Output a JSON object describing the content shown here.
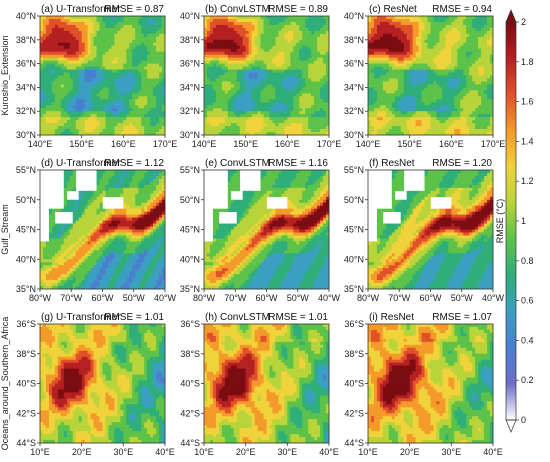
{
  "figure": {
    "rows": [
      {
        "label": "Kuroshio_Extension",
        "region": "kuroshio"
      },
      {
        "label": "Gulf_Stream",
        "region": "gulf"
      },
      {
        "label": "Oceans_around_Southern_Africa",
        "region": "africa"
      }
    ],
    "panels": [
      {
        "title": "(a) U-Transformer",
        "rmse": "RMSE = 0.87",
        "rmse_value": 0.87,
        "model": "U-Transformer",
        "region": "kuroshio"
      },
      {
        "title": "(b) ConvLSTM",
        "rmse": "RMSE = 0.89",
        "rmse_value": 0.89,
        "model": "ConvLSTM",
        "region": "kuroshio"
      },
      {
        "title": "(c) ResNet",
        "rmse": "RMSE = 0.94",
        "rmse_value": 0.94,
        "model": "ResNet",
        "region": "kuroshio"
      },
      {
        "title": "(d) U-Transformer",
        "rmse": "RMSE = 1.12",
        "rmse_value": 1.12,
        "model": "U-Transformer",
        "region": "gulf"
      },
      {
        "title": "(e) ConvLSTM",
        "rmse": "RMSE = 1.16",
        "rmse_value": 1.16,
        "model": "ConvLSTM",
        "region": "gulf"
      },
      {
        "title": "(f) ResNet",
        "rmse": "RMSE = 1.20",
        "rmse_value": 1.2,
        "model": "ResNet",
        "region": "gulf"
      },
      {
        "title": "(g) U-Transformer",
        "rmse": "RMSE = 1.01",
        "rmse_value": 1.01,
        "model": "U-Transformer",
        "region": "africa"
      },
      {
        "title": "(h) ConvLSTM",
        "rmse": "RMSE = 1.01",
        "rmse_value": 1.01,
        "model": "ConvLSTM",
        "region": "africa"
      },
      {
        "title": "(i) ResNet",
        "rmse": "RMSE = 1.07",
        "rmse_value": 1.07,
        "model": "ResNet",
        "region": "africa"
      }
    ],
    "axes": {
      "kuroshio": {
        "x_ticks": [
          "140°E",
          "150°E",
          "160°E",
          "170°E"
        ],
        "y_ticks": [
          "40°N",
          "38°N",
          "36°N",
          "34°N",
          "32°N",
          "30°N"
        ]
      },
      "gulf": {
        "x_ticks": [
          "80°W",
          "70°W",
          "60°W",
          "50°W",
          "40°W"
        ],
        "y_ticks": [
          "55°N",
          "50°N",
          "45°N",
          "40°N",
          "35°N"
        ]
      },
      "africa": {
        "x_ticks": [
          "10°E",
          "20°E",
          "30°E",
          "40°E"
        ],
        "y_ticks": [
          "36°S",
          "38°S",
          "40°S",
          "42°S",
          "44°S"
        ]
      }
    },
    "colorbar": {
      "title": "RMSE (°C)",
      "min": 0,
      "max": 2,
      "ticks": [
        "2",
        "1.8",
        "1.6",
        "1.4",
        "1.2",
        "1",
        "0.8",
        "0.6",
        "0.4",
        "0.2",
        "0"
      ],
      "colors": [
        "#ffffff",
        "#6e6ec8",
        "#4a7fd0",
        "#3b9fc2",
        "#2fae7a",
        "#5cc24a",
        "#b8d43a",
        "#f0d23a",
        "#f39a2b",
        "#e0512a",
        "#b52022",
        "#7a0c12"
      ]
    }
  },
  "chart_data": [
    {
      "type": "heatmap",
      "title": "(a) U-Transformer",
      "annotation": "RMSE = 0.87",
      "rmse": 0.87,
      "xlabel": "",
      "ylabel": "Kuroshio_Extension",
      "xlim": [
        "140°E",
        "170°E"
      ],
      "ylim": [
        "30°N",
        "40°N"
      ],
      "colorbar_range": [
        0,
        2
      ]
    },
    {
      "type": "heatmap",
      "title": "(b) ConvLSTM",
      "annotation": "RMSE = 0.89",
      "rmse": 0.89,
      "xlabel": "",
      "ylabel": "",
      "xlim": [
        "140°E",
        "170°E"
      ],
      "ylim": [
        "30°N",
        "40°N"
      ],
      "colorbar_range": [
        0,
        2
      ]
    },
    {
      "type": "heatmap",
      "title": "(c) ResNet",
      "annotation": "RMSE = 0.94",
      "rmse": 0.94,
      "xlabel": "",
      "ylabel": "",
      "xlim": [
        "140°E",
        "170°E"
      ],
      "ylim": [
        "30°N",
        "40°N"
      ],
      "colorbar_range": [
        0,
        2
      ]
    },
    {
      "type": "heatmap",
      "title": "(d) U-Transformer",
      "annotation": "RMSE = 1.12",
      "rmse": 1.12,
      "xlabel": "",
      "ylabel": "Gulf_Stream",
      "xlim": [
        "80°W",
        "40°W"
      ],
      "ylim": [
        "35°N",
        "55°N"
      ],
      "colorbar_range": [
        0,
        2
      ]
    },
    {
      "type": "heatmap",
      "title": "(e) ConvLSTM",
      "annotation": "RMSE = 1.16",
      "rmse": 1.16,
      "xlabel": "",
      "ylabel": "",
      "xlim": [
        "80°W",
        "40°W"
      ],
      "ylim": [
        "35°N",
        "55°N"
      ],
      "colorbar_range": [
        0,
        2
      ]
    },
    {
      "type": "heatmap",
      "title": "(f) ResNet",
      "annotation": "RMSE = 1.20",
      "rmse": 1.2,
      "xlabel": "",
      "ylabel": "",
      "xlim": [
        "80°W",
        "40°W"
      ],
      "ylim": [
        "35°N",
        "55°N"
      ],
      "colorbar_range": [
        0,
        2
      ]
    },
    {
      "type": "heatmap",
      "title": "(g) U-Transformer",
      "annotation": "RMSE = 1.01",
      "rmse": 1.01,
      "xlabel": "",
      "ylabel": "Oceans_around_Southern_Africa",
      "xlim": [
        "10°E",
        "45°E"
      ],
      "ylim": [
        "45°S",
        "35°S"
      ],
      "colorbar_range": [
        0,
        2
      ]
    },
    {
      "type": "heatmap",
      "title": "(h) ConvLSTM",
      "annotation": "RMSE = 1.01",
      "rmse": 1.01,
      "xlabel": "",
      "ylabel": "",
      "xlim": [
        "10°E",
        "45°E"
      ],
      "ylim": [
        "45°S",
        "35°S"
      ],
      "colorbar_range": [
        0,
        2
      ]
    },
    {
      "type": "heatmap",
      "title": "(i) ResNet",
      "annotation": "RMSE = 1.07",
      "rmse": 1.07,
      "xlabel": "",
      "ylabel": "",
      "xlim": [
        "10°E",
        "45°E"
      ],
      "ylim": [
        "45°S",
        "35°S"
      ],
      "colorbar_range": [
        0,
        2
      ]
    }
  ]
}
